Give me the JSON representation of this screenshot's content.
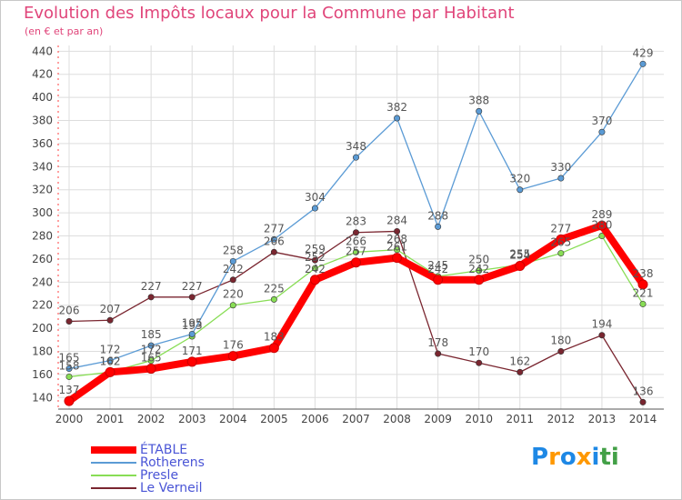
{
  "chart_data": {
    "type": "line",
    "title": "Evolution des Impôts locaux pour la Commune par Habitant",
    "subtitle": "(en € et par an)",
    "x": [
      "2000",
      "2001",
      "2002",
      "2003",
      "2004",
      "2005",
      "2006",
      "2007",
      "2008",
      "2009",
      "2010",
      "2011",
      "2012",
      "2013",
      "2014"
    ],
    "ylim": [
      130,
      445
    ],
    "yticks": [
      140,
      160,
      180,
      200,
      220,
      240,
      260,
      280,
      300,
      320,
      340,
      360,
      380,
      400,
      420,
      440
    ],
    "grid": true,
    "legend_position": "bottom-left",
    "series": [
      {
        "name": "ÉTABLE",
        "color": "#ff0000",
        "values": [
          137,
          162,
          165,
          171,
          176,
          183,
          242,
          257,
          261,
          242,
          242,
          254,
          277,
          289,
          238
        ],
        "labels": [
          "137",
          "162",
          "165",
          "171",
          "176",
          "183",
          "242",
          "257",
          "261",
          "242",
          "242",
          "254",
          "277",
          "289",
          "238"
        ]
      },
      {
        "name": "Rotherens",
        "color": "#5b9bd5",
        "values": [
          165,
          172,
          185,
          195,
          258,
          277,
          304,
          348,
          382,
          288,
          388,
          320,
          330,
          370,
          429
        ],
        "labels": [
          "165",
          "172",
          "185",
          "195",
          "258",
          "277",
          "304",
          "348",
          "382",
          "288",
          "388",
          "320",
          "330",
          "370",
          "429"
        ]
      },
      {
        "name": "Presle",
        "color": "#88dd55",
        "values": [
          158,
          162,
          172,
          193,
          220,
          225,
          252,
          266,
          268,
          245,
          250,
          255,
          265,
          280,
          221
        ],
        "labels": [
          "158",
          "162",
          "172",
          "193",
          "220",
          "225",
          "252",
          "266",
          "268",
          "245",
          "250",
          "255",
          "265",
          "280",
          "221"
        ]
      },
      {
        "name": "Le Verneil",
        "color": "#7a2630",
        "values": [
          206,
          207,
          227,
          227,
          242,
          266,
          259,
          283,
          284,
          178,
          170,
          162,
          180,
          194,
          136
        ],
        "labels": [
          "206",
          "207",
          "227",
          "227",
          "242",
          "266",
          "259",
          "283",
          "284",
          "178",
          "170",
          "162",
          "180",
          "194",
          "136"
        ]
      }
    ]
  },
  "legend": {
    "items": [
      {
        "label": "ÉTABLE"
      },
      {
        "label": "Rotherens"
      },
      {
        "label": "Presle"
      },
      {
        "label": "Le Verneil"
      }
    ]
  },
  "logo": {
    "text": "Proxiti",
    "letters": [
      "P",
      "r",
      "o",
      "x",
      "i",
      "t",
      "i"
    ],
    "colors": [
      "#1e88e5",
      "#ff9800",
      "#1e88e5",
      "#ff9800",
      "#1e88e5",
      "#43a047",
      "#43a047"
    ]
  }
}
